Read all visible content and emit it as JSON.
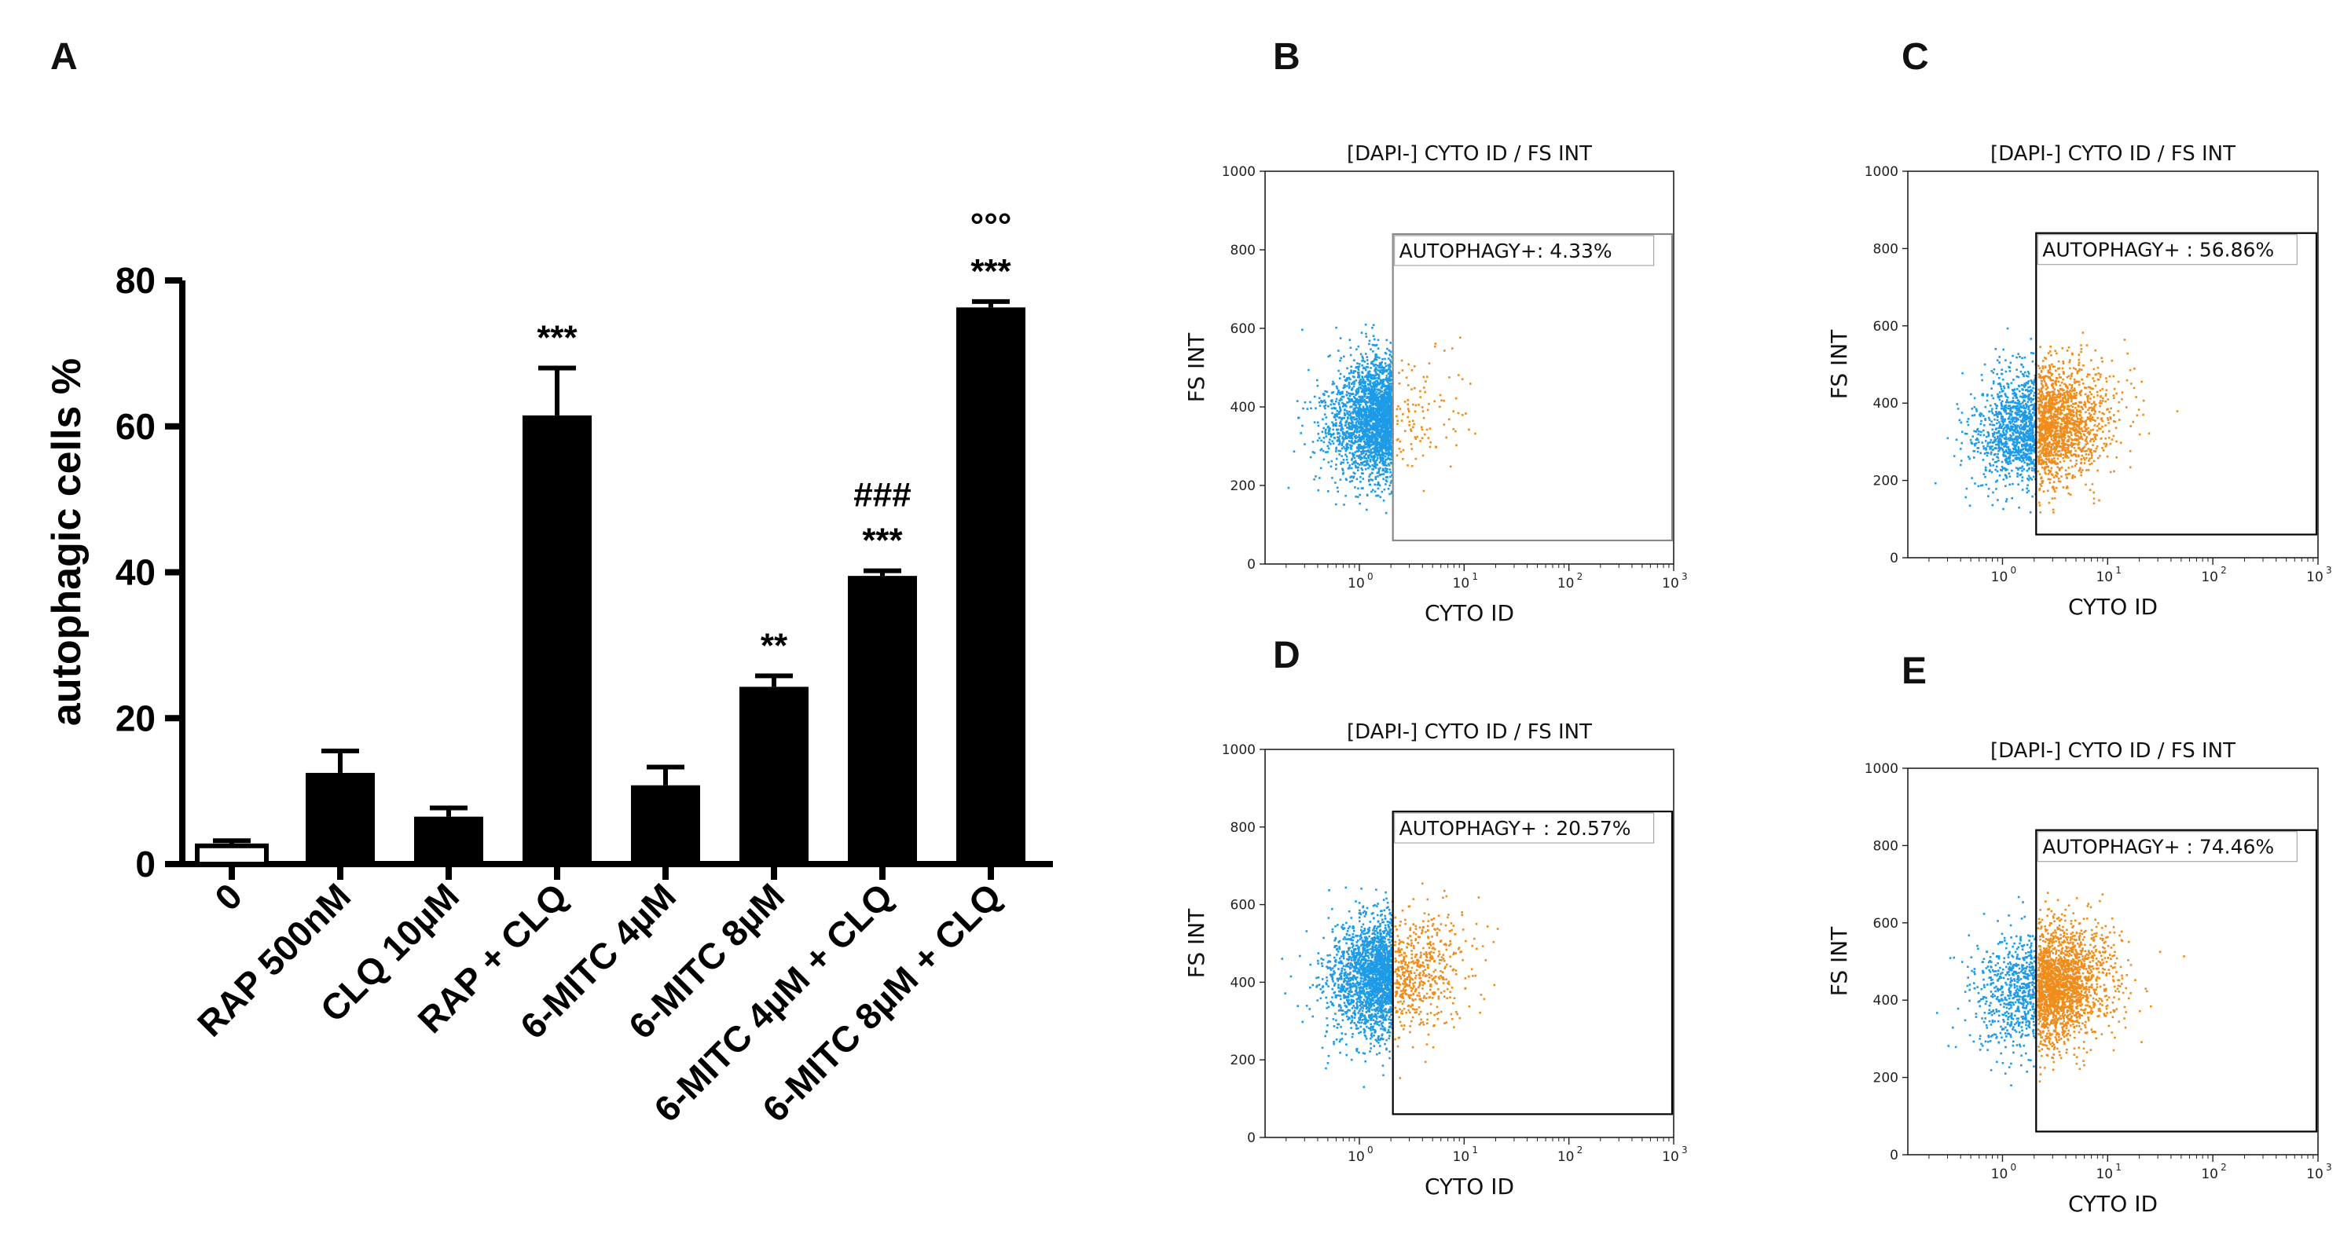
{
  "chart_data": [
    {
      "panel": "A",
      "type": "bar",
      "ylabel": "autophagic cells %",
      "xlabel": "",
      "ylim": [
        0,
        80
      ],
      "yticks": [
        "0",
        "20",
        "40",
        "60",
        "80"
      ],
      "categories": [
        "0",
        "RAP 500nM",
        "CLQ 10µM",
        "RAP + CLQ",
        "6-MITC 4µM",
        "6-MITC 8µM",
        "6-MITC 4µM + CLQ",
        "6-MITC 8µM + CLQ"
      ],
      "values": [
        2.5,
        12.5,
        6.5,
        61.5,
        10.8,
        24.3,
        39.5,
        76.3
      ],
      "errors": [
        0.7,
        3.0,
        1.2,
        6.5,
        2.5,
        1.5,
        0.7,
        0.8
      ],
      "significance": [
        "",
        "",
        "",
        "***",
        "",
        "**",
        "###\n***",
        "°°°\n***"
      ]
    },
    {
      "panel": "B",
      "type": "scatter",
      "title": "[DAPI-] CYTO ID / FS INT",
      "xlabel": "CYTO ID",
      "ylabel": "FS INT",
      "ylim": [
        0,
        1000
      ],
      "yticks": [
        "0",
        "200",
        "400",
        "600",
        "800",
        "1000"
      ],
      "xscale": "log",
      "xticks": [
        "0",
        "1",
        "2",
        "3"
      ],
      "gate_label": "AUTOPHAGY+: 4.33%",
      "positive_fraction": 0.0433,
      "center_x_log": 0.0,
      "center_y": 380
    },
    {
      "panel": "C",
      "type": "scatter",
      "title": "[DAPI-] CYTO ID / FS INT",
      "xlabel": "CYTO ID",
      "ylabel": "FS INT",
      "ylim": [
        0,
        1000
      ],
      "yticks": [
        "0",
        "200",
        "400",
        "600",
        "800",
        "1000"
      ],
      "xscale": "log",
      "xticks": [
        "0",
        "1",
        "2",
        "3"
      ],
      "gate_label": "AUTOPHAGY+ : 56.86%",
      "positive_fraction": 0.5686,
      "center_x_log": 0.42,
      "center_y": 340
    },
    {
      "panel": "D",
      "type": "scatter",
      "title": "[DAPI-] CYTO ID / FS INT",
      "xlabel": "CYTO ID",
      "ylabel": "FS INT",
      "ylim": [
        0,
        1000
      ],
      "yticks": [
        "0",
        "200",
        "400",
        "600",
        "800",
        "1000"
      ],
      "xscale": "log",
      "xticks": [
        "0",
        "1",
        "2",
        "3"
      ],
      "gate_label": "AUTOPHAGY+ : 20.57%",
      "positive_fraction": 0.2057,
      "center_x_log": 0.12,
      "center_y": 420
    },
    {
      "panel": "E",
      "type": "scatter",
      "title": "[DAPI-] CYTO ID / FS INT",
      "xlabel": "CYTO ID",
      "ylabel": "FS INT",
      "ylim": [
        0,
        1000
      ],
      "yticks": [
        "0",
        "200",
        "400",
        "600",
        "800",
        "1000"
      ],
      "xscale": "log",
      "xticks": [
        "0",
        "1",
        "2",
        "3"
      ],
      "gate_label": "AUTOPHAGY+ : 74.46%",
      "positive_fraction": 0.7446,
      "center_x_log": 0.55,
      "center_y": 430
    }
  ],
  "colors": {
    "bar": "#000000",
    "control_bar": "#ffffff",
    "negative_events": "#1e9be6",
    "positive_events": "#f08c1a",
    "gate_b": "#888888",
    "gate": "#000000"
  }
}
